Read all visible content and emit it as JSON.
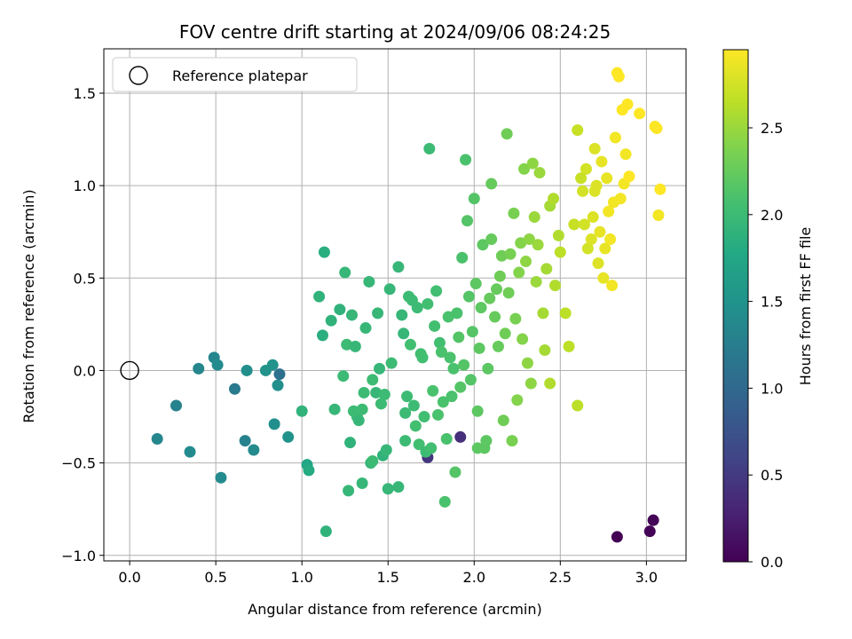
{
  "chart_data": {
    "type": "scatter",
    "title": "FOV centre drift starting at 2024/09/06 08:24:25",
    "xlabel": "Angular distance from reference (arcmin)",
    "ylabel": "Rotation from reference (arcmin)",
    "xlim": [
      -0.15,
      3.23
    ],
    "ylim": [
      -1.03,
      1.74
    ],
    "xticks": [
      0.0,
      0.5,
      1.0,
      1.5,
      2.0,
      2.5,
      3.0
    ],
    "yticks": [
      -1.0,
      -0.5,
      0.0,
      0.5,
      1.0,
      1.5
    ],
    "grid": true,
    "legend": {
      "placement": "top-left",
      "entries": [
        "Reference platepar"
      ]
    },
    "reference_point": {
      "x": 0.0,
      "y": 0.0
    },
    "colorbar": {
      "label": "Hours from first FF file",
      "colormap": "viridis",
      "range": [
        0.0,
        2.95
      ],
      "ticks": [
        0.0,
        0.5,
        1.0,
        1.5,
        2.0,
        2.5
      ]
    },
    "points": [
      [
        2.83,
        -0.9,
        0.0
      ],
      [
        3.02,
        -0.87,
        0.02
      ],
      [
        3.04,
        -0.81,
        0.03
      ],
      [
        1.92,
        -0.36,
        0.4
      ],
      [
        1.73,
        -0.47,
        0.45
      ],
      [
        0.16,
        -0.37,
        1.35
      ],
      [
        0.27,
        -0.19,
        1.3
      ],
      [
        0.35,
        -0.44,
        1.4
      ],
      [
        0.4,
        0.01,
        1.35
      ],
      [
        0.49,
        0.07,
        1.35
      ],
      [
        0.51,
        0.03,
        1.4
      ],
      [
        0.53,
        -0.58,
        1.4
      ],
      [
        0.61,
        -0.1,
        1.2
      ],
      [
        0.67,
        -0.38,
        1.3
      ],
      [
        0.68,
        0.0,
        1.45
      ],
      [
        0.72,
        -0.43,
        1.4
      ],
      [
        0.79,
        0.0,
        1.5
      ],
      [
        0.83,
        0.03,
        1.5
      ],
      [
        0.86,
        -0.08,
        1.45
      ],
      [
        0.87,
        -0.02,
        1.1
      ],
      [
        0.84,
        -0.29,
        1.45
      ],
      [
        0.92,
        -0.36,
        1.5
      ],
      [
        1.0,
        -0.22,
        1.9
      ],
      [
        1.03,
        -0.51,
        1.75
      ],
      [
        1.04,
        -0.54,
        1.8
      ],
      [
        1.1,
        0.4,
        1.9
      ],
      [
        1.12,
        0.19,
        1.85
      ],
      [
        1.13,
        0.64,
        1.85
      ],
      [
        1.14,
        -0.87,
        1.9
      ],
      [
        1.17,
        0.27,
        1.9
      ],
      [
        1.19,
        -0.21,
        1.95
      ],
      [
        1.22,
        0.33,
        1.9
      ],
      [
        1.24,
        -0.03,
        2.0
      ],
      [
        1.25,
        0.53,
        1.95
      ],
      [
        1.26,
        0.14,
        2.0
      ],
      [
        1.27,
        -0.65,
        1.95
      ],
      [
        1.28,
        -0.39,
        1.9
      ],
      [
        1.29,
        0.3,
        1.95
      ],
      [
        1.3,
        -0.22,
        2.0
      ],
      [
        1.31,
        0.13,
        1.95
      ],
      [
        1.32,
        -0.25,
        2.0
      ],
      [
        1.33,
        -0.27,
        1.95
      ],
      [
        1.35,
        -0.21,
        2.0
      ],
      [
        1.35,
        -0.61,
        1.95
      ],
      [
        1.36,
        -0.12,
        2.0
      ],
      [
        1.37,
        0.23,
        1.95
      ],
      [
        1.39,
        0.48,
        1.95
      ],
      [
        1.4,
        -0.5,
        1.95
      ],
      [
        1.41,
        -0.49,
        2.0
      ],
      [
        1.41,
        -0.05,
        2.0
      ],
      [
        1.43,
        -0.12,
        1.95
      ],
      [
        1.44,
        0.31,
        1.95
      ],
      [
        1.45,
        0.01,
        1.95
      ],
      [
        1.46,
        -0.18,
        2.0
      ],
      [
        1.47,
        -0.46,
        1.9
      ],
      [
        1.48,
        -0.13,
        2.0
      ],
      [
        1.49,
        -0.43,
        1.95
      ],
      [
        1.5,
        -0.64,
        1.95
      ],
      [
        1.51,
        0.44,
        1.95
      ],
      [
        1.52,
        0.04,
        2.0
      ],
      [
        1.56,
        0.56,
        1.95
      ],
      [
        1.56,
        -0.63,
        1.95
      ],
      [
        1.58,
        0.3,
        1.95
      ],
      [
        1.59,
        0.2,
        1.95
      ],
      [
        1.6,
        -0.23,
        2.0
      ],
      [
        1.6,
        -0.38,
        2.0
      ],
      [
        1.61,
        -0.14,
        2.0
      ],
      [
        1.62,
        0.4,
        2.0
      ],
      [
        1.63,
        0.14,
        2.05
      ],
      [
        1.64,
        0.38,
        2.0
      ],
      [
        1.65,
        -0.19,
        2.0
      ],
      [
        1.66,
        -0.3,
        2.05
      ],
      [
        1.67,
        0.34,
        2.0
      ],
      [
        1.68,
        -0.4,
        2.05
      ],
      [
        1.69,
        0.09,
        2.05
      ],
      [
        1.7,
        0.07,
        2.05
      ],
      [
        1.71,
        -0.25,
        2.05
      ],
      [
        1.72,
        -0.44,
        2.0
      ],
      [
        1.73,
        0.36,
        2.05
      ],
      [
        1.74,
        1.2,
        2.0
      ],
      [
        1.75,
        -0.42,
        2.05
      ],
      [
        1.76,
        -0.11,
        2.1
      ],
      [
        1.77,
        0.24,
        2.05
      ],
      [
        1.78,
        0.43,
        2.05
      ],
      [
        1.79,
        -0.24,
        2.1
      ],
      [
        1.8,
        0.15,
        2.05
      ],
      [
        1.81,
        0.1,
        2.1
      ],
      [
        1.82,
        -0.17,
        2.1
      ],
      [
        1.83,
        -0.71,
        2.1
      ],
      [
        1.84,
        -0.37,
        2.1
      ],
      [
        1.85,
        0.29,
        2.1
      ],
      [
        1.86,
        0.07,
        2.1
      ],
      [
        1.87,
        -0.14,
        2.1
      ],
      [
        1.88,
        0.01,
        2.1
      ],
      [
        1.89,
        -0.55,
        2.15
      ],
      [
        1.9,
        0.31,
        2.1
      ],
      [
        1.91,
        0.18,
        2.15
      ],
      [
        1.92,
        -0.09,
        2.15
      ],
      [
        1.93,
        0.61,
        2.1
      ],
      [
        1.94,
        0.03,
        2.15
      ],
      [
        1.95,
        1.14,
        2.1
      ],
      [
        1.96,
        0.81,
        2.15
      ],
      [
        1.97,
        0.4,
        2.15
      ],
      [
        1.98,
        -0.05,
        2.15
      ],
      [
        1.99,
        0.21,
        2.15
      ],
      [
        2.0,
        0.93,
        2.15
      ],
      [
        2.01,
        0.47,
        2.2
      ],
      [
        2.02,
        -0.22,
        2.2
      ],
      [
        2.02,
        -0.42,
        2.2
      ],
      [
        2.03,
        0.12,
        2.2
      ],
      [
        2.04,
        0.34,
        2.2
      ],
      [
        2.05,
        0.68,
        2.2
      ],
      [
        2.06,
        -0.42,
        2.2
      ],
      [
        2.07,
        -0.38,
        2.2
      ],
      [
        2.08,
        0.01,
        2.2
      ],
      [
        2.09,
        0.39,
        2.25
      ],
      [
        2.1,
        0.71,
        2.25
      ],
      [
        2.1,
        1.01,
        2.25
      ],
      [
        2.12,
        0.29,
        2.25
      ],
      [
        2.13,
        0.44,
        2.25
      ],
      [
        2.14,
        0.13,
        2.25
      ],
      [
        2.15,
        0.51,
        2.3
      ],
      [
        2.16,
        0.62,
        2.3
      ],
      [
        2.17,
        -0.27,
        2.3
      ],
      [
        2.18,
        0.2,
        2.3
      ],
      [
        2.19,
        1.28,
        2.3
      ],
      [
        2.2,
        0.42,
        2.3
      ],
      [
        2.21,
        0.63,
        2.35
      ],
      [
        2.22,
        -0.38,
        2.35
      ],
      [
        2.23,
        0.85,
        2.35
      ],
      [
        2.24,
        0.28,
        2.35
      ],
      [
        2.25,
        -0.16,
        2.4
      ],
      [
        2.26,
        0.53,
        2.4
      ],
      [
        2.27,
        0.69,
        2.4
      ],
      [
        2.28,
        0.17,
        2.4
      ],
      [
        2.29,
        1.09,
        2.4
      ],
      [
        2.3,
        0.59,
        2.45
      ],
      [
        2.31,
        0.04,
        2.45
      ],
      [
        2.32,
        0.71,
        2.45
      ],
      [
        2.33,
        -0.07,
        2.45
      ],
      [
        2.34,
        1.12,
        2.45
      ],
      [
        2.35,
        0.83,
        2.5
      ],
      [
        2.36,
        0.48,
        2.5
      ],
      [
        2.37,
        0.68,
        2.5
      ],
      [
        2.38,
        1.07,
        2.5
      ],
      [
        2.4,
        0.31,
        2.55
      ],
      [
        2.41,
        0.11,
        2.55
      ],
      [
        2.42,
        0.55,
        2.55
      ],
      [
        2.44,
        0.89,
        2.55
      ],
      [
        2.44,
        -0.07,
        2.6
      ],
      [
        2.46,
        0.93,
        2.6
      ],
      [
        2.47,
        0.46,
        2.6
      ],
      [
        2.49,
        0.73,
        2.6
      ],
      [
        2.5,
        0.64,
        2.65
      ],
      [
        2.53,
        0.31,
        2.65
      ],
      [
        2.55,
        0.13,
        2.65
      ],
      [
        2.58,
        0.79,
        2.7
      ],
      [
        2.6,
        -0.19,
        2.65
      ],
      [
        2.6,
        1.3,
        2.7
      ],
      [
        2.62,
        1.04,
        2.7
      ],
      [
        2.63,
        0.97,
        2.75
      ],
      [
        2.65,
        1.09,
        2.75
      ],
      [
        2.66,
        0.66,
        2.75
      ],
      [
        2.68,
        0.71,
        2.8
      ],
      [
        2.69,
        0.83,
        2.8
      ],
      [
        2.7,
        1.2,
        2.8
      ],
      [
        2.71,
        1.0,
        2.8
      ],
      [
        2.72,
        0.58,
        2.8
      ],
      [
        2.73,
        0.75,
        2.85
      ],
      [
        2.74,
        1.13,
        2.85
      ],
      [
        2.75,
        0.5,
        2.85
      ],
      [
        2.76,
        0.66,
        2.85
      ],
      [
        2.77,
        1.04,
        2.85
      ],
      [
        2.78,
        0.86,
        2.9
      ],
      [
        2.79,
        0.71,
        2.9
      ],
      [
        2.8,
        0.46,
        2.9
      ],
      [
        2.81,
        0.91,
        2.9
      ],
      [
        2.82,
        1.26,
        2.9
      ],
      [
        2.83,
        1.61,
        2.95
      ],
      [
        2.84,
        1.59,
        2.95
      ],
      [
        2.85,
        0.93,
        2.9
      ],
      [
        2.86,
        1.41,
        2.95
      ],
      [
        2.87,
        1.01,
        2.9
      ],
      [
        2.88,
        1.17,
        2.9
      ],
      [
        2.89,
        1.44,
        2.95
      ],
      [
        2.9,
        1.05,
        2.95
      ],
      [
        2.96,
        1.39,
        2.95
      ],
      [
        3.05,
        1.32,
        2.95
      ],
      [
        3.06,
        1.31,
        2.95
      ],
      [
        3.07,
        0.84,
        2.9
      ],
      [
        3.08,
        0.98,
        2.95
      ],
      [
        2.7,
        0.97,
        2.8
      ],
      [
        2.64,
        0.79,
        2.75
      ]
    ]
  }
}
